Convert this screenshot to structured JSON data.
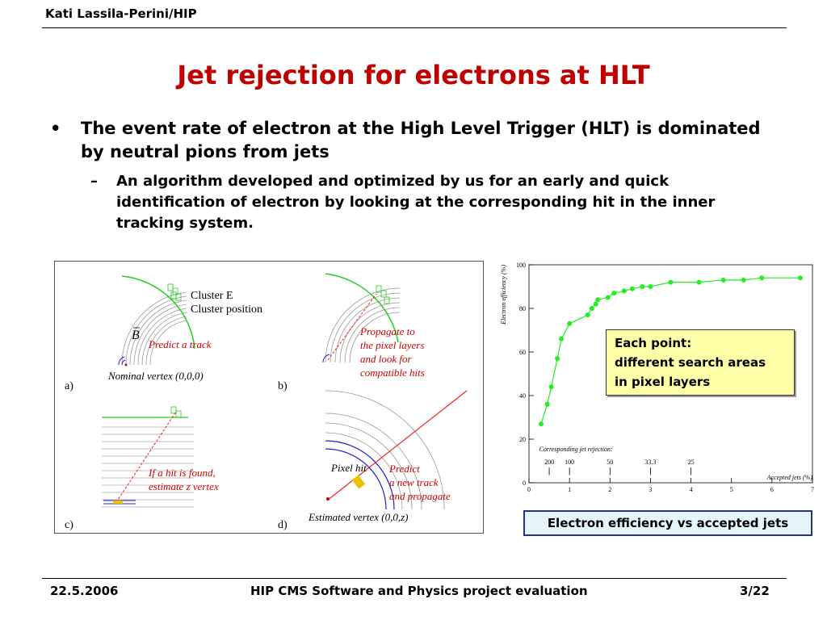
{
  "header": {
    "author": "Kati Lassila-Perini/HIP"
  },
  "title": "Jet rejection for electrons at HLT",
  "bullets": {
    "main_marker": "•",
    "main": "The event rate of electron at the High Level Trigger (HLT) is dominated by neutral pions from jets",
    "sub_marker": "–",
    "sub": "An algorithm developed and optimized by us for an early and quick identification of electron by looking at the corresponding hit in the inner tracking system."
  },
  "diagram": {
    "panel_a": {
      "cluster_e": "Cluster E",
      "cluster_position": "Cluster position",
      "b_field": "B",
      "predict": "Predict a track",
      "vertex": "Nominal vertex (0,0,0)",
      "letter": "a)"
    },
    "panel_b": {
      "line1": "Propagate to",
      "line2": "the pixel layers",
      "line3": "and look for",
      "line4": "compatible hits",
      "letter": "b)"
    },
    "panel_c": {
      "line1": "If a hit is found,",
      "line2": "estimate z vertex",
      "letter": "c)"
    },
    "panel_d": {
      "pixel_hit": "Pixel hit",
      "line1": "Predict",
      "line2": "a new track",
      "line3": "and propagate",
      "vertex": "Estimated vertex (0,0,z)",
      "letter": "d)"
    },
    "colors": {
      "annotation": "#cc0000",
      "cluster": "#22cc22",
      "track": "#ee2222",
      "layers": "#2222cc"
    }
  },
  "chart_data": {
    "type": "scatter",
    "x": [
      0.3,
      0.45,
      0.55,
      0.7,
      0.8,
      1.0,
      1.45,
      1.55,
      1.65,
      1.7,
      1.95,
      2.1,
      2.35,
      2.55,
      2.8,
      3.0,
      3.5,
      4.2,
      4.8,
      5.3,
      5.75,
      6.7
    ],
    "y": [
      27,
      36,
      44,
      57,
      66,
      73,
      77,
      80,
      82,
      84,
      85,
      87,
      88,
      89,
      90,
      90,
      92,
      92,
      93,
      93,
      94,
      94
    ],
    "xlabel": "Accepted jets (%)",
    "ylabel": "Electron efficiency (%)",
    "xlim": [
      0,
      7
    ],
    "ylim": [
      0,
      100
    ],
    "xticks": [
      "0",
      "1",
      "2",
      "3",
      "4",
      "5",
      "6",
      "7"
    ],
    "yticks": [
      "0",
      "20",
      "40",
      "60",
      "80",
      "100"
    ],
    "annotation_title": "Corresponding jet rejection:",
    "rejection_markers": [
      {
        "label": "200",
        "x": 0.5
      },
      {
        "label": "100",
        "x": 1.0
      },
      {
        "label": "50",
        "x": 2.0
      },
      {
        "label": "33.3",
        "x": 3.0
      },
      {
        "label": "25",
        "x": 4.0
      }
    ],
    "marker_color": "#22ee22",
    "grid": false
  },
  "callout": {
    "line1": "Each point:",
    "line2": "different search areas",
    "line3": "in pixel layers"
  },
  "caption": "Electron efficiency vs accepted jets",
  "footer": {
    "date": "22.5.2006",
    "event": "HIP CMS Software and Physics project evaluation",
    "page": "3/22"
  }
}
